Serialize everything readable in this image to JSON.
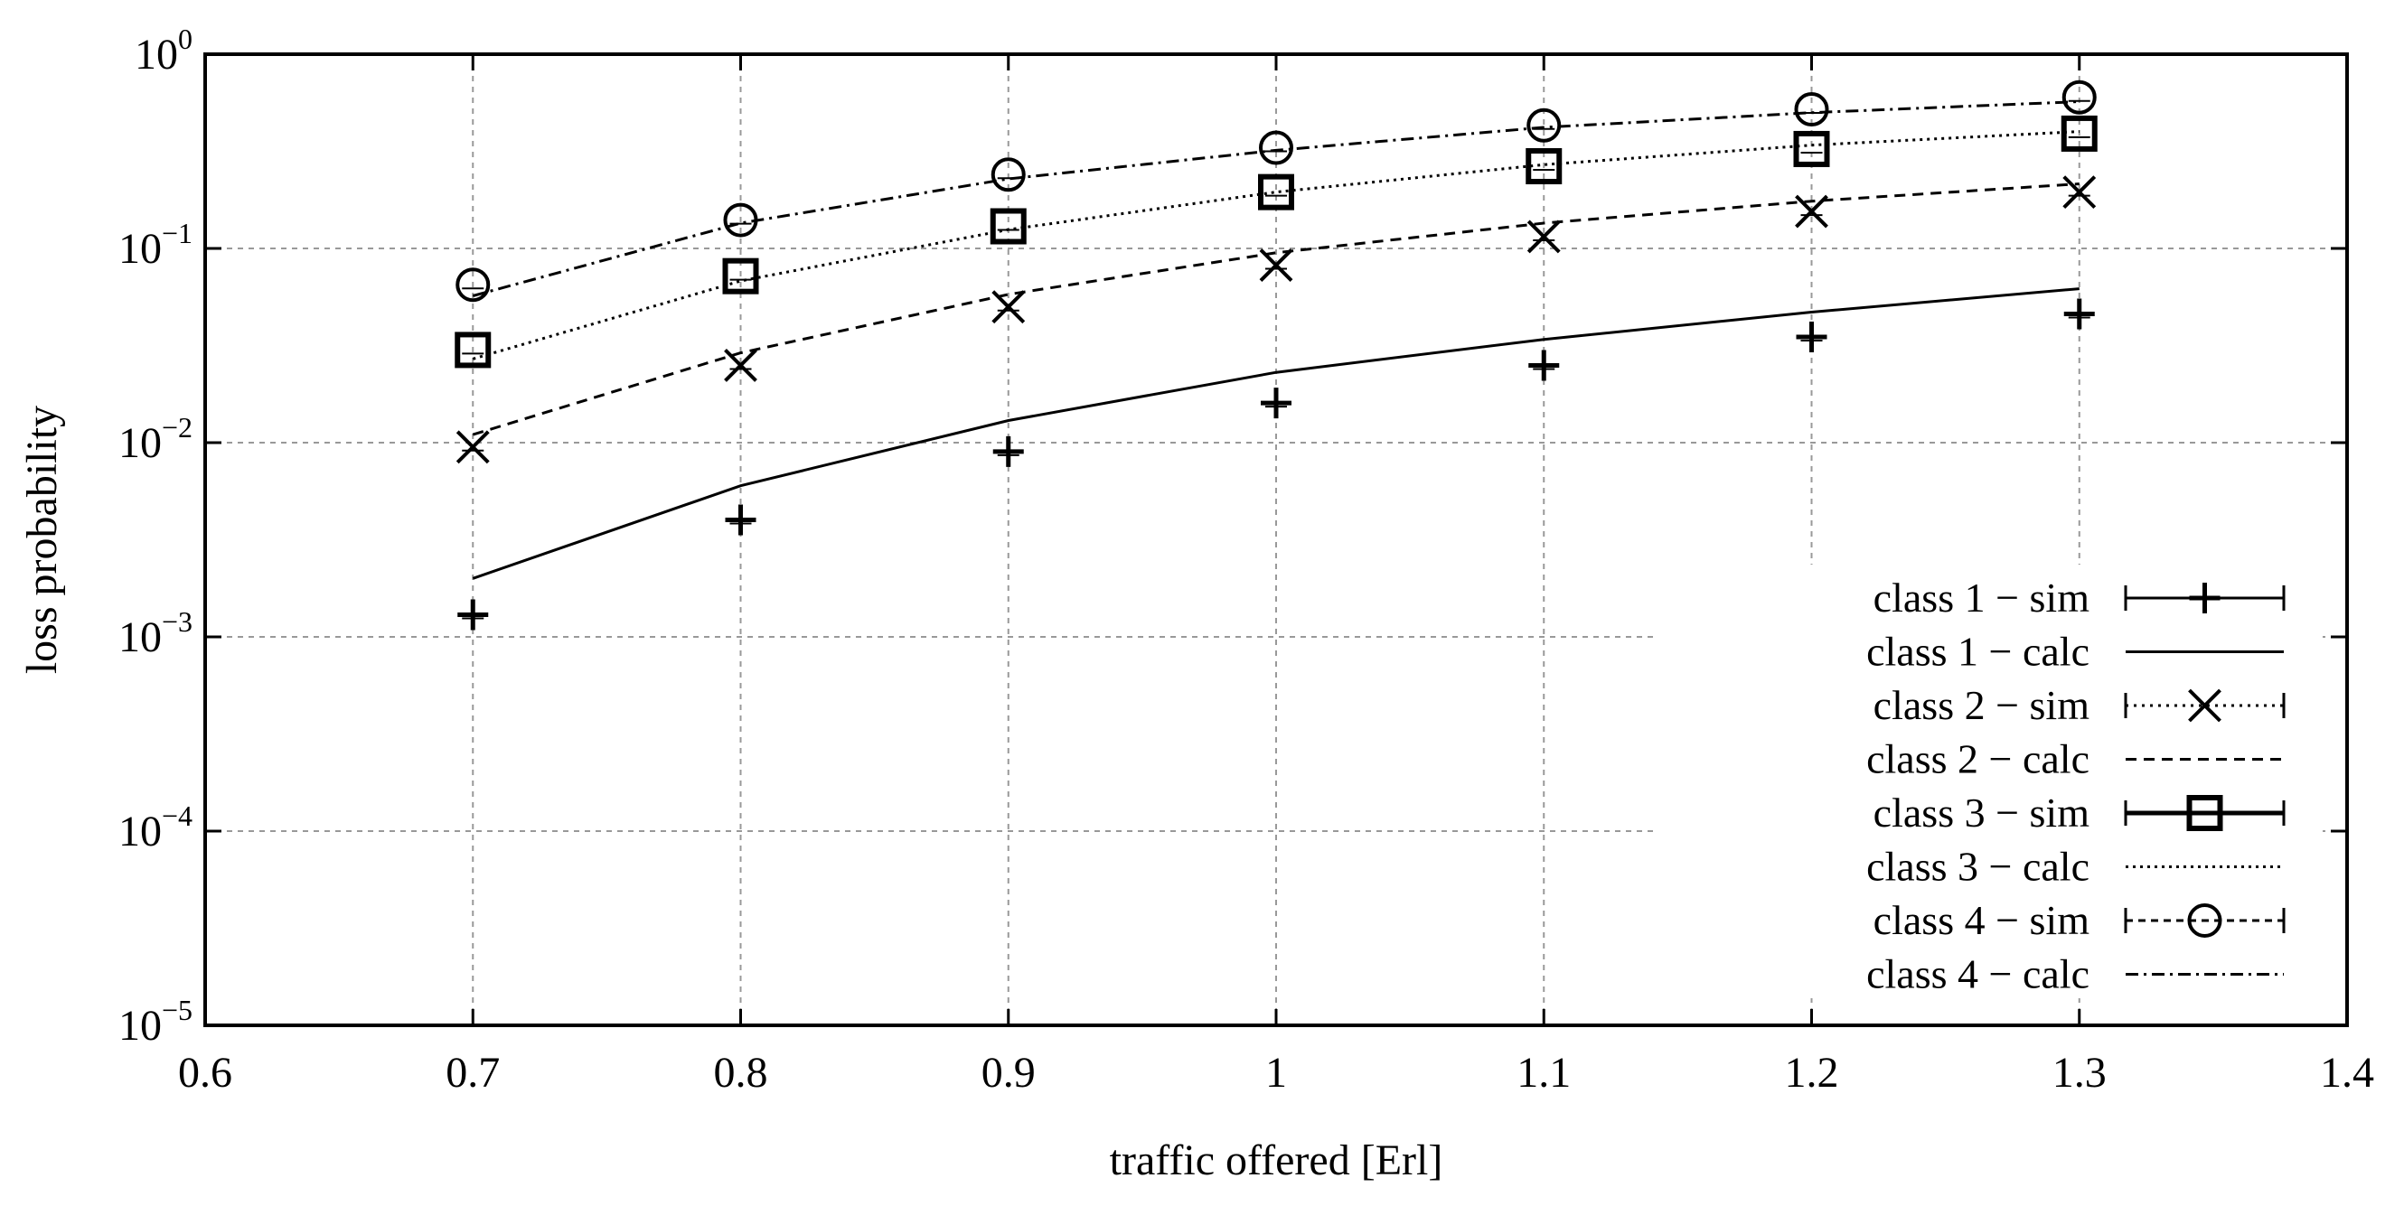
{
  "chart_data": {
    "type": "line",
    "title": "",
    "xlabel": "traffic offered [Erl]",
    "ylabel": "loss probability",
    "xlim": [
      0.6,
      1.4
    ],
    "ylim": [
      1e-05,
      1
    ],
    "yscale": "log",
    "grid": true,
    "legend_position": "bottom-right",
    "x_ticks": [
      0.6,
      0.7,
      0.8,
      0.9,
      1.0,
      1.1,
      1.2,
      1.3,
      1.4
    ],
    "x_tick_labels": [
      "0.6",
      "0.7",
      "0.8",
      "0.9",
      "1",
      "1.1",
      "1.2",
      "1.3",
      "1.4"
    ],
    "y_ticks": [
      1e-05,
      0.0001,
      0.001,
      0.01,
      0.1,
      1
    ],
    "y_tick_labels": [
      {
        "base": "10",
        "exp": "−5"
      },
      {
        "base": "10",
        "exp": "−4"
      },
      {
        "base": "10",
        "exp": "−3"
      },
      {
        "base": "10",
        "exp": "−2"
      },
      {
        "base": "10",
        "exp": "−1"
      },
      {
        "base": "10",
        "exp": "0"
      }
    ],
    "x": [
      0.7,
      0.8,
      0.9,
      1.0,
      1.1,
      1.2,
      1.3
    ],
    "series": [
      {
        "name": "class 1 − sim",
        "kind": "sim",
        "marker": "plus",
        "dash": "none",
        "values": [
          0.0013,
          0.004,
          0.009,
          0.016,
          0.025,
          0.035,
          0.046
        ]
      },
      {
        "name": "class 1 − calc",
        "kind": "calc",
        "marker": "none",
        "dash": "none",
        "values": [
          0.002,
          0.006,
          0.013,
          0.023,
          0.034,
          0.047,
          0.062
        ]
      },
      {
        "name": "class 2 − sim",
        "kind": "sim",
        "marker": "cross",
        "dash": "3,6",
        "values": [
          0.0095,
          0.025,
          0.05,
          0.082,
          0.115,
          0.155,
          0.195
        ]
      },
      {
        "name": "class 2 − calc",
        "kind": "calc",
        "marker": "none",
        "dash": "12,8",
        "values": [
          0.011,
          0.029,
          0.058,
          0.095,
          0.135,
          0.175,
          0.215
        ]
      },
      {
        "name": "class 3 − sim",
        "kind": "sim",
        "marker": "square",
        "dash": "none",
        "values": [
          0.03,
          0.072,
          0.13,
          0.195,
          0.265,
          0.325,
          0.39
        ]
      },
      {
        "name": "class 3 − calc",
        "kind": "calc",
        "marker": "none",
        "dash": "3,5",
        "values": [
          0.027,
          0.068,
          0.125,
          0.195,
          0.27,
          0.34,
          0.4
        ]
      },
      {
        "name": "class 4 − sim",
        "kind": "sim",
        "marker": "circle",
        "dash": "8,6",
        "values": [
          0.065,
          0.14,
          0.24,
          0.33,
          0.43,
          0.52,
          0.6
        ]
      },
      {
        "name": "class 4 − calc",
        "kind": "calc",
        "marker": "none",
        "dash": "14,6,3,6",
        "values": [
          0.057,
          0.135,
          0.228,
          0.32,
          0.42,
          0.5,
          0.57
        ]
      }
    ]
  }
}
